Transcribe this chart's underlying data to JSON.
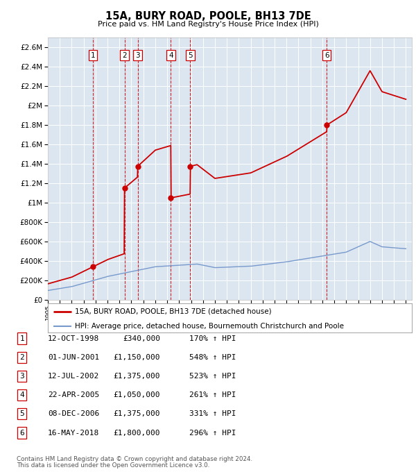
{
  "title": "15A, BURY ROAD, POOLE, BH13 7DE",
  "subtitle": "Price paid vs. HM Land Registry's House Price Index (HPI)",
  "sales": [
    {
      "num": 1,
      "date": "12-OCT-1998",
      "year": 1998.78,
      "price": 340000,
      "pct": "170% ↑ HPI"
    },
    {
      "num": 2,
      "date": "01-JUN-2001",
      "year": 2001.42,
      "price": 1150000,
      "pct": "548% ↑ HPI"
    },
    {
      "num": 3,
      "date": "12-JUL-2002",
      "year": 2002.53,
      "price": 1375000,
      "pct": "523% ↑ HPI"
    },
    {
      "num": 4,
      "date": "22-APR-2005",
      "year": 2005.31,
      "price": 1050000,
      "pct": "261% ↑ HPI"
    },
    {
      "num": 5,
      "date": "08-DEC-2006",
      "year": 2006.93,
      "price": 1375000,
      "pct": "331% ↑ HPI"
    },
    {
      "num": 6,
      "date": "16-MAY-2018",
      "year": 2018.37,
      "price": 1800000,
      "pct": "296% ↑ HPI"
    }
  ],
  "table_rows": [
    {
      "num": "1",
      "date": "12-OCT-1998",
      "price": "£340,000",
      "pct": "170% ↑ HPI"
    },
    {
      "num": "2",
      "date": "01-JUN-2001",
      "price": "£1,150,000",
      "pct": "548% ↑ HPI"
    },
    {
      "num": "3",
      "date": "12-JUL-2002",
      "price": "£1,375,000",
      "pct": "523% ↑ HPI"
    },
    {
      "num": "4",
      "date": "22-APR-2005",
      "price": "£1,050,000",
      "pct": "261% ↑ HPI"
    },
    {
      "num": "5",
      "date": "08-DEC-2006",
      "price": "£1,375,000",
      "pct": "331% ↑ HPI"
    },
    {
      "num": "6",
      "date": "16-MAY-2018",
      "price": "£1,800,000",
      "pct": "296% ↑ HPI"
    }
  ],
  "legend_property": "15A, BURY ROAD, POOLE, BH13 7DE (detached house)",
  "legend_hpi": "HPI: Average price, detached house, Bournemouth Christchurch and Poole",
  "footer1": "Contains HM Land Registry data © Crown copyright and database right 2024.",
  "footer2": "This data is licensed under the Open Government Licence v3.0.",
  "ylim": [
    0,
    2700000
  ],
  "xlim_start": 1995,
  "xlim_end": 2025.5,
  "bg_color": "#dce6f1",
  "grid_color": "#ffffff",
  "red_color": "#cc0000",
  "blue_color": "#7799cc",
  "dash_color": "#cc0000"
}
